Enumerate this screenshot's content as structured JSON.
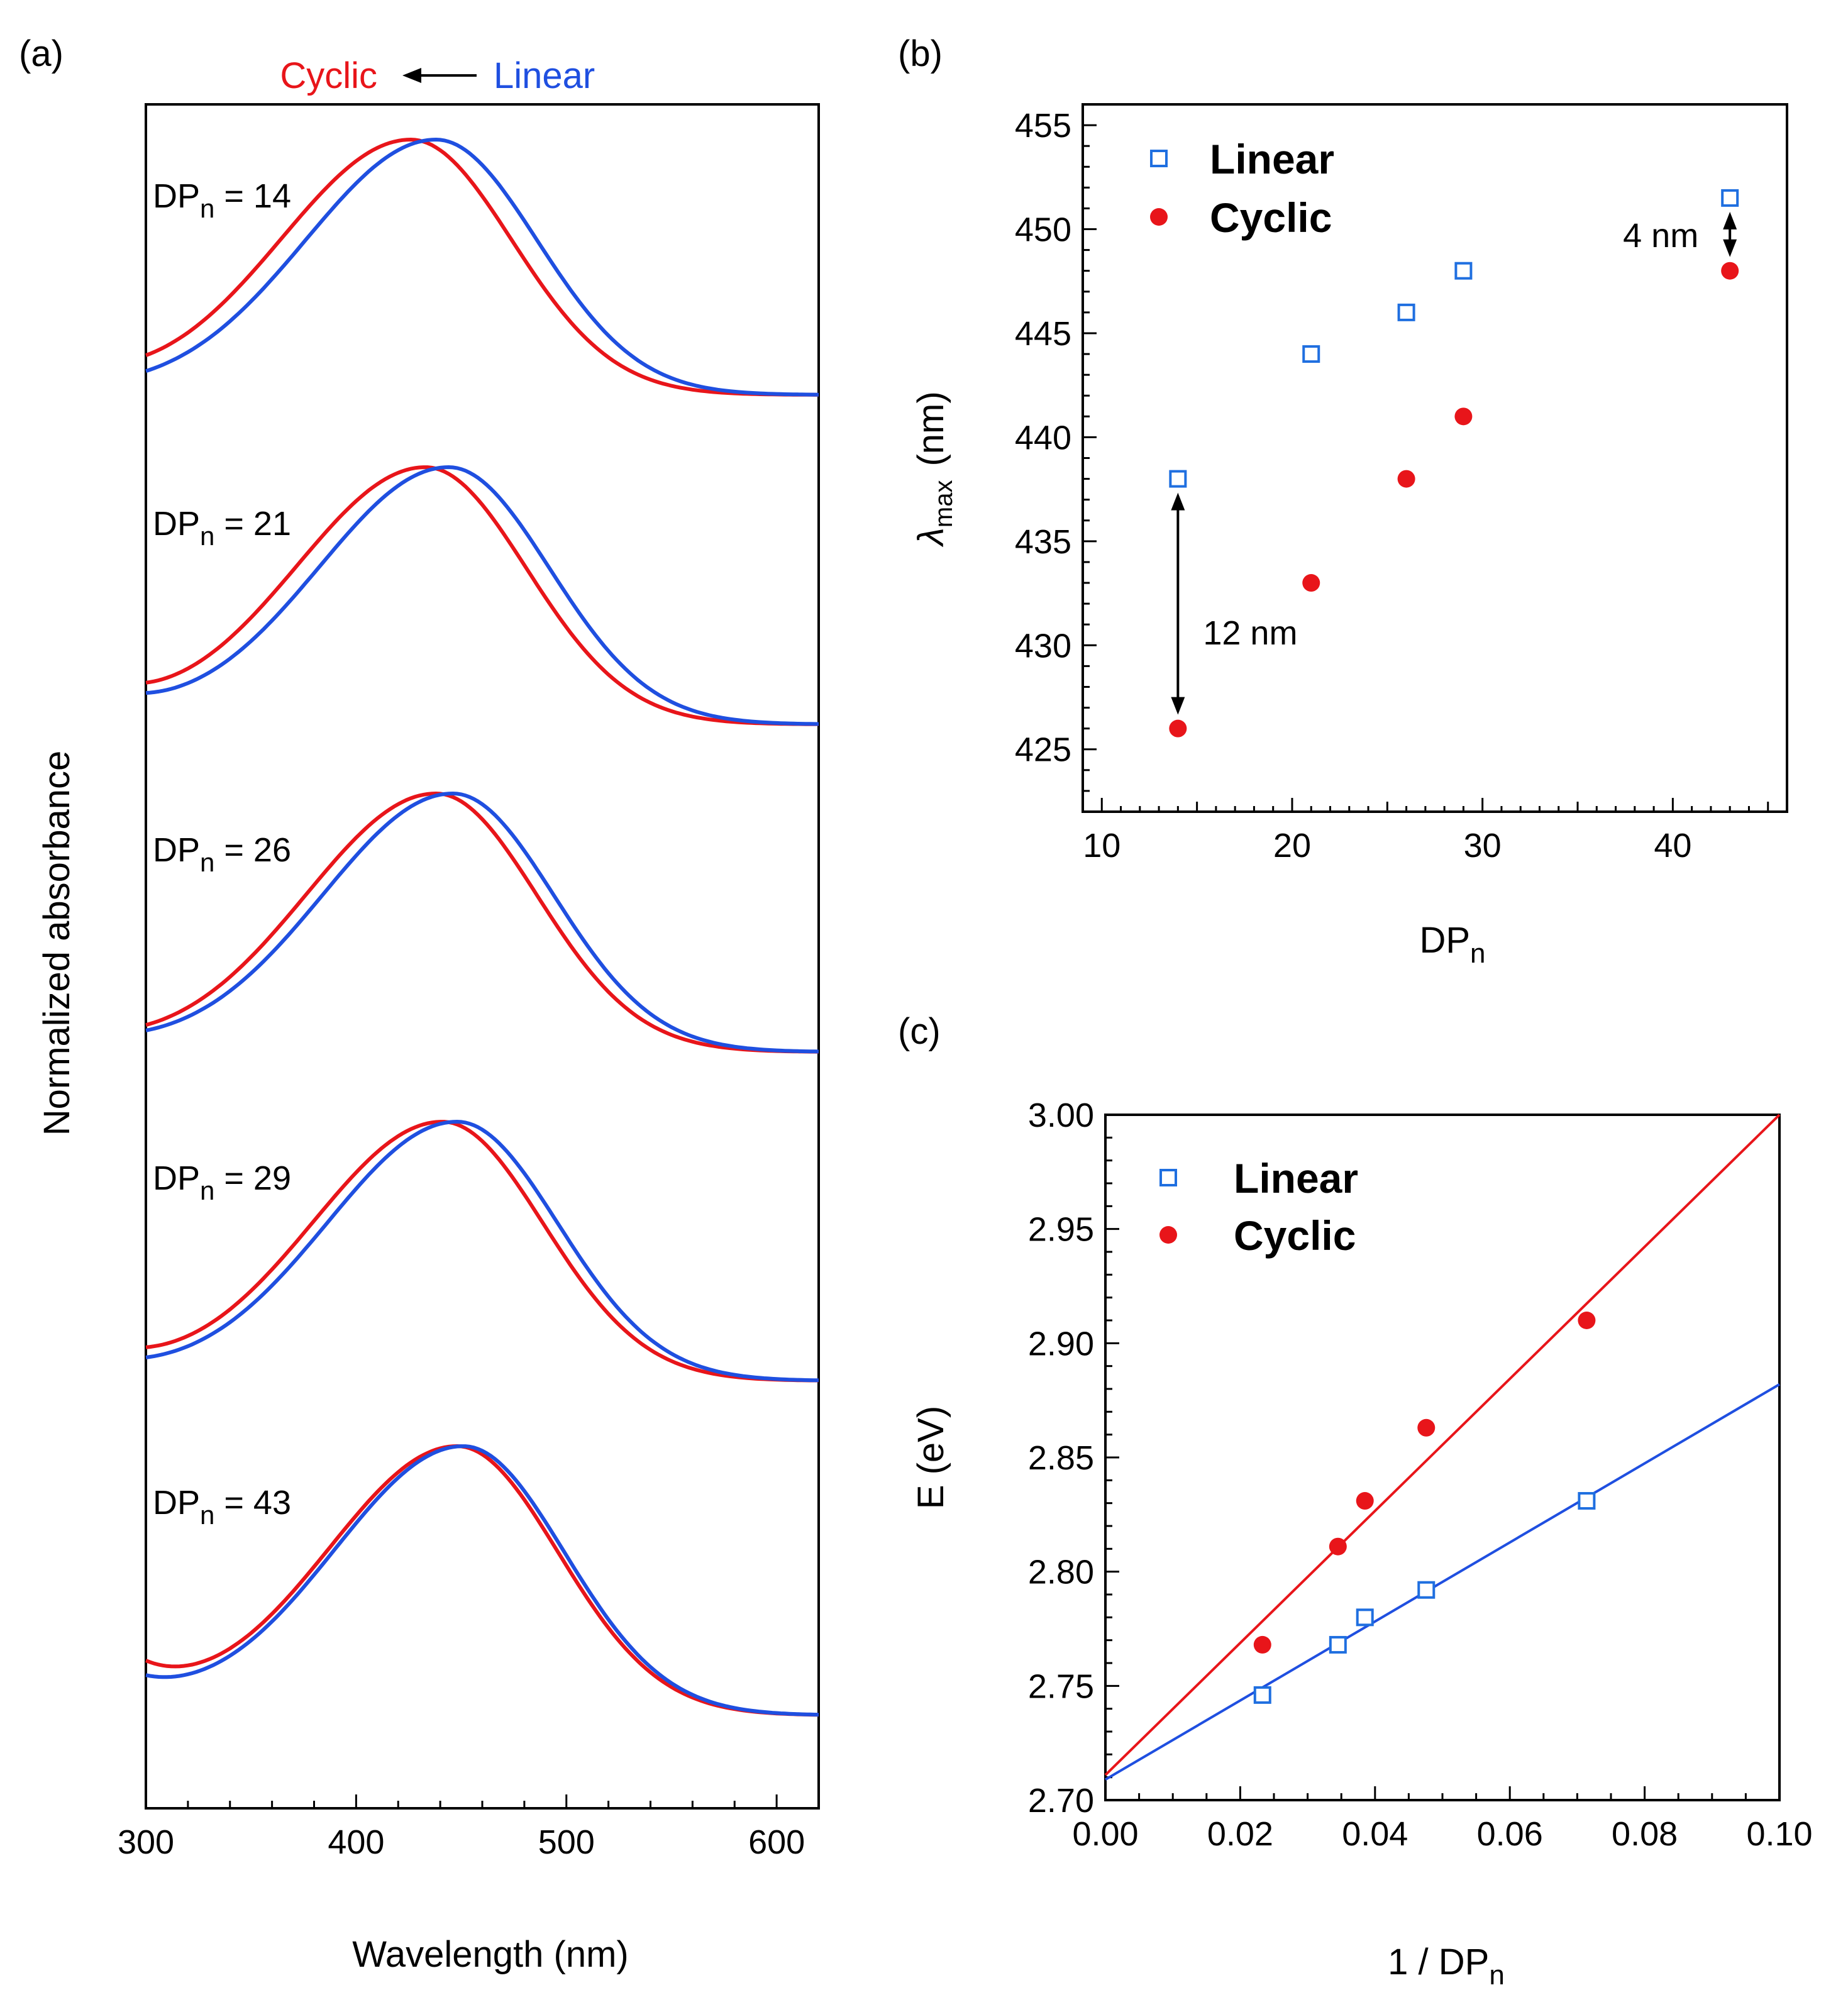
{
  "colors": {
    "linear": "#1f4fe0",
    "cyclic": "#e8151a",
    "linear_marker": "#1f6fe0"
  },
  "chart_data": [
    {
      "panel": "(a)",
      "type": "line",
      "xlabel": "Wavelength (nm)",
      "ylabel": "Normalized absorbance",
      "xlim": [
        300,
        620
      ],
      "xticks": [
        300,
        400,
        500,
        600
      ],
      "header": {
        "cyclic": "Cyclic",
        "linear": "Linear"
      },
      "series_names": [
        "Cyclic",
        "Linear"
      ],
      "stacks": [
        {
          "label_main": "DP",
          "label_sub": "n",
          "label_rest": " = 14",
          "cyclic_peak": 426,
          "linear_peak": 438
        },
        {
          "label_main": "DP",
          "label_sub": "n",
          "label_rest": " = 21",
          "cyclic_peak": 433,
          "linear_peak": 444
        },
        {
          "label_main": "DP",
          "label_sub": "n",
          "label_rest": " = 26",
          "cyclic_peak": 438,
          "linear_peak": 446
        },
        {
          "label_main": "DP",
          "label_sub": "n",
          "label_rest": " = 29",
          "cyclic_peak": 441,
          "linear_peak": 448
        },
        {
          "label_main": "DP",
          "label_sub": "n",
          "label_rest": " = 43",
          "cyclic_peak": 448,
          "linear_peak": 451
        }
      ]
    },
    {
      "panel": "(b)",
      "type": "scatter",
      "xlabel_main": "DP",
      "xlabel_sub": "n",
      "ylabel_symbol": "λ",
      "ylabel_sub": "max",
      "ylabel_rest": "(nm)",
      "xlim": [
        9,
        46
      ],
      "ylim": [
        422,
        456
      ],
      "xticks": [
        10,
        20,
        30,
        40
      ],
      "yticks": [
        425,
        430,
        435,
        440,
        445,
        450,
        455
      ],
      "series": [
        {
          "name": "Linear",
          "x": [
            14,
            21,
            26,
            29,
            43
          ],
          "y": [
            438,
            444,
            446,
            448,
            451.5
          ]
        },
        {
          "name": "Cyclic",
          "x": [
            14,
            21,
            26,
            29,
            43
          ],
          "y": [
            426,
            433,
            438,
            441,
            448
          ]
        }
      ],
      "annotations": [
        {
          "text": "12 nm",
          "x": 14,
          "y_from": 426,
          "y_to": 438
        },
        {
          "text": "4 nm",
          "x": 43,
          "y_from": 448,
          "y_to": 451.5
        }
      ],
      "legend": "top-left"
    },
    {
      "panel": "(c)",
      "type": "scatter",
      "xlabel_main": "1 / DP",
      "xlabel_sub": "n",
      "ylabel": "E (eV)",
      "xlim": [
        0,
        0.1
      ],
      "ylim": [
        2.7,
        3.0
      ],
      "xticks": [
        "0.00",
        "0.02",
        "0.04",
        "0.06",
        "0.08",
        "0.10"
      ],
      "yticks": [
        "2.70",
        "2.75",
        "2.80",
        "2.85",
        "2.90",
        "2.95",
        "3.00"
      ],
      "series": [
        {
          "name": "Linear",
          "x": [
            0.0233,
            0.0345,
            0.0385,
            0.0476,
            0.0714
          ],
          "y": [
            2.746,
            2.768,
            2.78,
            2.792,
            2.831
          ],
          "fit": [
            2.709,
            2.882
          ]
        },
        {
          "name": "Cyclic",
          "x": [
            0.0233,
            0.0345,
            0.0385,
            0.0476,
            0.0714
          ],
          "y": [
            2.768,
            2.811,
            2.831,
            2.863,
            2.91
          ],
          "fit": [
            2.711,
            3.0
          ]
        }
      ],
      "legend": "top-left"
    }
  ]
}
